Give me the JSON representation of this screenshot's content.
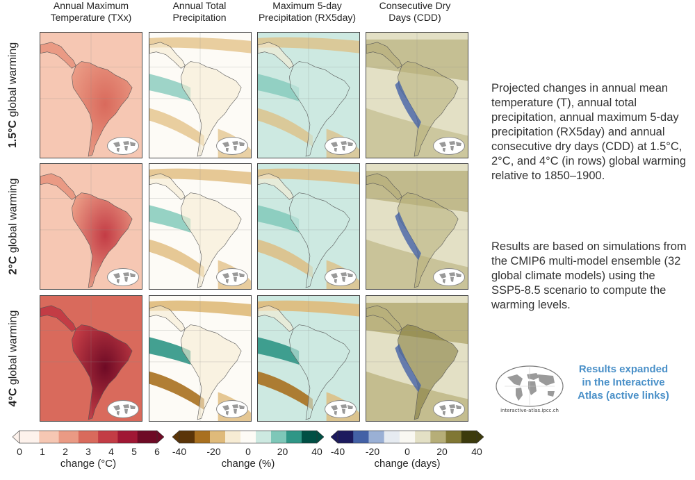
{
  "columns": [
    {
      "line1": "Annual Maximum",
      "line2": "Temperature (TXx)"
    },
    {
      "line1": "Annual Total",
      "line2": "Precipitation"
    },
    {
      "line1": "Maximum 5-day",
      "line2": "Precipitation (RX5day)"
    },
    {
      "line1": "Consecutive Dry",
      "line2": "Days (CDD)"
    }
  ],
  "rows": [
    {
      "level": "1.5°C",
      "suffix": " global warming"
    },
    {
      "level": "2°C",
      "suffix": " global warming"
    },
    {
      "level": "4°C",
      "suffix": " global warming"
    }
  ],
  "description": {
    "p1": "Projected changes in annual mean temperature (T), annual total precipitation, annual maximum 5-day precipitation (RX5day) and annual consecutive dry days (CDD) at 1.5°C, 2°C, and 4°C (in rows) global warming relative to 1850–1900.",
    "p2": "Results are based on simulations from the CMIP6 multi-model ensemble (32 global climate models) using the SSP5-8.5 scenario to compute the warming levels."
  },
  "atlas": {
    "url": "interactive-atlas.ipcc.ch",
    "link_line1": "Results expanded",
    "link_line2": "in the Interactive",
    "link_line3": "Atlas (active links)"
  },
  "colorbars": [
    {
      "label": "change (°C)",
      "ticks": [
        "0",
        "1",
        "2",
        "3",
        "4",
        "5",
        "6"
      ]
    },
    {
      "label": "change (%)",
      "ticks": [
        "-40",
        "-20",
        "0",
        "20",
        "40"
      ]
    },
    {
      "label": "change (days)",
      "ticks": [
        "-40",
        "-20",
        "0",
        "20",
        "40"
      ]
    }
  ],
  "colors": {
    "temp": [
      "#fdf2ec",
      "#f6c7b3",
      "#ea9a84",
      "#d96a5c",
      "#c33c45",
      "#a01734",
      "#6e0a25"
    ],
    "precip": [
      "#5b3508",
      "#a9701f",
      "#dfba7a",
      "#f7ecd4",
      "#fdfbf6",
      "#cde9e1",
      "#7ec7b8",
      "#2f9686",
      "#004f44"
    ],
    "cdd": [
      "#1c1a5e",
      "#4361a6",
      "#9ab0d5",
      "#e6ebf1",
      "#f9f8f2",
      "#e3e0c5",
      "#b6ae78",
      "#807734",
      "#3c3a0c"
    ],
    "link": "#4a90c8"
  }
}
